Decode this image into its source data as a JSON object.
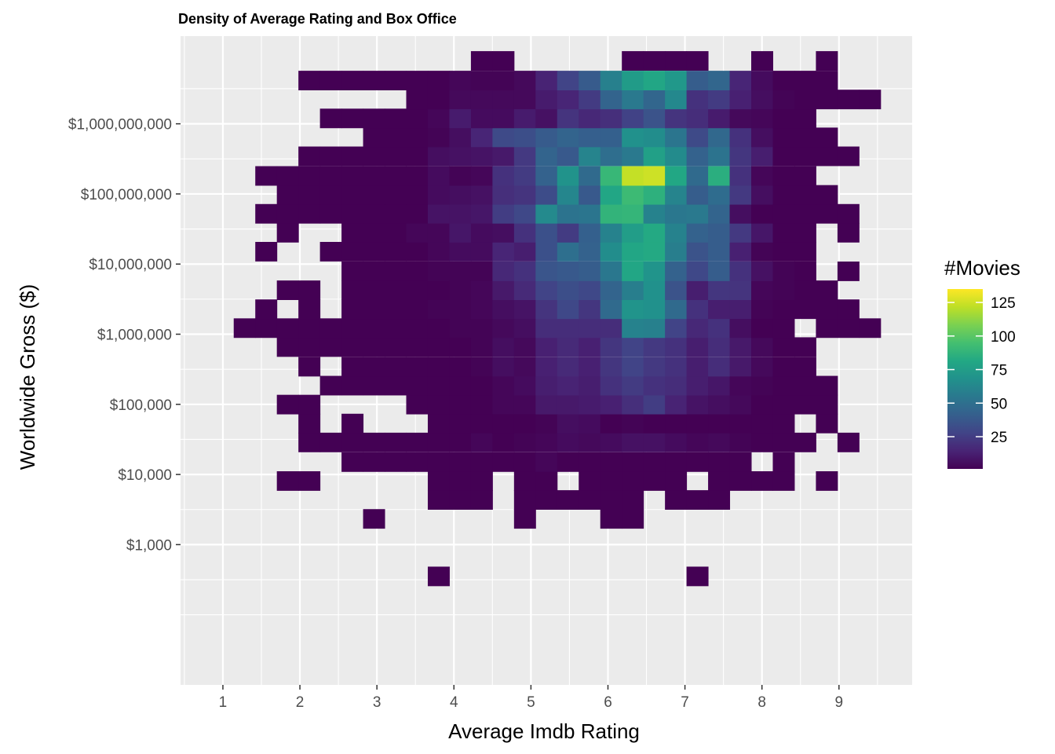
{
  "chart_data": {
    "type": "heatmap",
    "title": "Density of Average Rating and Box Office",
    "xlabel": "Average Imdb Rating",
    "ylabel": "Worldwide Gross ($)",
    "x_ticks": [
      1,
      2,
      3,
      4,
      5,
      6,
      7,
      8,
      9
    ],
    "x_tick_labels": [
      "1",
      "2",
      "3",
      "4",
      "5",
      "6",
      "7",
      "8",
      "9"
    ],
    "y_scale": "log10",
    "y_ticks": [
      1000,
      10000,
      100000,
      1000000,
      10000000,
      100000000,
      1000000000
    ],
    "y_tick_labels": [
      "$1,000",
      "$10,000",
      "$100,000",
      "$1,000,000",
      "$10,000,000",
      "$100,000,000",
      "$1,000,000,000"
    ],
    "xlim": [
      0.45,
      9.95
    ],
    "ylim_log10": [
      1.0,
      10.25
    ],
    "bin_width_x": 0.279,
    "bin_height_log10": 0.272,
    "x_bin_centers": [
      1.0,
      1.28,
      1.56,
      1.84,
      2.12,
      2.4,
      2.68,
      2.96,
      3.24,
      3.52,
      3.8,
      4.08,
      4.36,
      4.64,
      4.92,
      5.2,
      5.48,
      5.76,
      6.04,
      6.32,
      6.6,
      6.88,
      7.16,
      7.44,
      7.72,
      8.0,
      8.28,
      8.56,
      8.84,
      9.12,
      9.4
    ],
    "y_bin_centers_log10": [
      2.55,
      2.82,
      3.1,
      3.37,
      3.64,
      3.91,
      4.18,
      4.46,
      4.73,
      5.0,
      5.27,
      5.54,
      5.82,
      6.09,
      6.36,
      6.63,
      6.9,
      7.18,
      7.45,
      7.72,
      7.99,
      8.26,
      8.54,
      8.81,
      9.08,
      9.35,
      9.62,
      9.9
    ],
    "counts": [
      [
        0,
        0,
        0,
        0,
        0,
        0,
        0,
        0,
        0,
        0,
        1,
        0,
        0,
        0,
        0,
        0,
        0,
        0,
        0,
        0,
        0,
        0,
        1,
        0,
        0,
        0,
        0,
        0,
        0,
        0,
        0
      ],
      [
        0,
        0,
        0,
        0,
        0,
        0,
        0,
        0,
        0,
        0,
        0,
        0,
        0,
        0,
        0,
        0,
        0,
        0,
        0,
        0,
        0,
        0,
        0,
        0,
        0,
        0,
        0,
        0,
        0,
        0,
        0
      ],
      [
        0,
        0,
        0,
        0,
        0,
        0,
        0,
        0,
        0,
        0,
        0,
        0,
        0,
        0,
        0,
        0,
        0,
        0,
        0,
        0,
        0,
        0,
        0,
        0,
        0,
        0,
        0,
        0,
        0,
        0,
        0
      ],
      [
        0,
        0,
        0,
        0,
        0,
        0,
        0,
        1,
        0,
        0,
        0,
        0,
        0,
        0,
        1,
        0,
        0,
        0,
        1,
        1,
        0,
        0,
        0,
        0,
        0,
        0,
        0,
        0,
        0,
        0,
        0
      ],
      [
        0,
        0,
        0,
        0,
        0,
        0,
        0,
        0,
        0,
        0,
        1,
        1,
        1,
        0,
        1,
        1,
        1,
        1,
        1,
        1,
        0,
        1,
        1,
        1,
        0,
        0,
        0,
        0,
        0,
        0,
        0
      ],
      [
        0,
        0,
        0,
        1,
        1,
        0,
        0,
        0,
        0,
        0,
        1,
        1,
        1,
        0,
        1,
        1,
        0,
        1,
        1,
        1,
        1,
        1,
        0,
        1,
        1,
        1,
        1,
        0,
        1,
        0,
        0
      ],
      [
        0,
        0,
        0,
        0,
        0,
        0,
        1,
        1,
        1,
        1,
        1,
        1,
        1,
        1,
        1,
        3,
        1,
        1,
        1,
        1,
        1,
        1,
        1,
        1,
        1,
        0,
        1,
        0,
        0,
        0,
        0
      ],
      [
        0,
        0,
        0,
        0,
        1,
        1,
        1,
        1,
        1,
        1,
        1,
        1,
        3,
        1,
        2,
        3,
        5,
        4,
        5,
        7,
        7,
        5,
        3,
        4,
        2,
        1,
        1,
        1,
        0,
        1,
        0
      ],
      [
        0,
        0,
        0,
        0,
        1,
        0,
        1,
        0,
        0,
        0,
        1,
        1,
        1,
        1,
        1,
        2,
        6,
        5,
        1,
        2,
        1,
        1,
        1,
        1,
        1,
        1,
        1,
        0,
        1,
        0,
        0
      ],
      [
        0,
        0,
        0,
        1,
        1,
        0,
        0,
        0,
        0,
        1,
        1,
        1,
        1,
        3,
        3,
        10,
        10,
        11,
        13,
        19,
        25,
        14,
        8,
        6,
        4,
        1,
        1,
        1,
        1,
        0,
        0
      ],
      [
        0,
        0,
        0,
        0,
        0,
        1,
        1,
        1,
        1,
        1,
        1,
        1,
        1,
        3,
        5,
        12,
        14,
        12,
        20,
        24,
        20,
        18,
        12,
        9,
        3,
        2,
        1,
        1,
        1,
        0,
        0
      ],
      [
        0,
        0,
        0,
        0,
        1,
        0,
        1,
        1,
        1,
        1,
        1,
        1,
        2,
        6,
        4,
        13,
        17,
        13,
        22,
        28,
        23,
        20,
        12,
        18,
        10,
        4,
        1,
        1,
        0,
        0,
        0
      ],
      [
        0,
        0,
        0,
        1,
        1,
        1,
        1,
        1,
        1,
        1,
        1,
        1,
        2,
        6,
        4,
        13,
        17,
        13,
        22,
        28,
        23,
        20,
        12,
        18,
        10,
        4,
        1,
        1,
        0,
        0,
        0
      ],
      [
        0,
        1,
        1,
        1,
        1,
        1,
        1,
        1,
        1,
        1,
        1,
        2,
        2,
        4,
        6,
        18,
        18,
        18,
        18,
        60,
        59,
        28,
        16,
        20,
        6,
        1,
        1,
        0,
        1,
        1,
        1
      ],
      [
        0,
        0,
        1,
        0,
        1,
        0,
        1,
        1,
        1,
        1,
        2,
        2,
        3,
        6,
        8,
        21,
        30,
        22,
        47,
        70,
        68,
        47,
        20,
        12,
        12,
        2,
        1,
        1,
        1,
        1,
        0
      ],
      [
        0,
        0,
        0,
        1,
        1,
        0,
        1,
        1,
        1,
        1,
        1,
        2,
        3,
        10,
        17,
        28,
        33,
        30,
        44,
        58,
        68,
        35,
        12,
        22,
        21,
        3,
        2,
        1,
        1,
        0,
        0
      ],
      [
        0,
        0,
        0,
        0,
        0,
        0,
        1,
        1,
        1,
        1,
        2,
        2,
        2,
        16,
        20,
        36,
        38,
        40,
        54,
        80,
        70,
        43,
        30,
        40,
        20,
        7,
        2,
        1,
        0,
        1,
        0
      ],
      [
        0,
        0,
        1,
        0,
        0,
        1,
        1,
        1,
        1,
        1,
        3,
        5,
        5,
        15,
        12,
        34,
        50,
        43,
        66,
        80,
        82,
        58,
        35,
        40,
        13,
        2,
        1,
        1,
        0,
        0,
        0
      ],
      [
        0,
        0,
        0,
        1,
        0,
        0,
        1,
        1,
        1,
        3,
        3,
        9,
        5,
        6,
        20,
        34,
        24,
        42,
        60,
        75,
        82,
        60,
        43,
        40,
        23,
        9,
        1,
        1,
        0,
        1,
        0
      ],
      [
        0,
        0,
        1,
        1,
        1,
        1,
        1,
        1,
        1,
        1,
        8,
        8,
        9,
        25,
        30,
        64,
        52,
        53,
        88,
        89,
        60,
        54,
        55,
        44,
        6,
        1,
        1,
        1,
        1,
        1,
        0
      ],
      [
        0,
        0,
        0,
        1,
        1,
        1,
        1,
        1,
        1,
        1,
        5,
        6,
        7,
        19,
        21,
        32,
        62,
        38,
        80,
        92,
        86,
        61,
        40,
        48,
        23,
        6,
        1,
        1,
        1,
        0,
        0
      ],
      [
        0,
        0,
        1,
        1,
        1,
        1,
        1,
        1,
        1,
        1,
        5,
        2,
        3,
        20,
        24,
        43,
        69,
        47,
        90,
        123,
        125,
        81,
        47,
        85,
        20,
        3,
        1,
        1,
        0,
        0,
        0
      ],
      [
        0,
        0,
        0,
        0,
        1,
        1,
        1,
        1,
        1,
        1,
        6,
        7,
        8,
        10,
        23,
        44,
        38,
        61,
        49,
        55,
        77,
        65,
        43,
        52,
        22,
        12,
        1,
        1,
        1,
        1,
        0
      ],
      [
        0,
        0,
        0,
        0,
        0,
        0,
        0,
        1,
        1,
        1,
        2,
        6,
        15,
        31,
        33,
        39,
        44,
        41,
        42,
        68,
        66,
        53,
        31,
        46,
        20,
        6,
        1,
        1,
        1,
        0,
        0
      ],
      [
        0,
        0,
        0,
        0,
        0,
        1,
        1,
        1,
        1,
        1,
        3,
        11,
        5,
        5,
        11,
        7,
        21,
        16,
        19,
        27,
        35,
        21,
        18,
        11,
        4,
        3,
        1,
        1,
        0,
        0,
        0
      ],
      [
        0,
        0,
        0,
        0,
        0,
        0,
        0,
        0,
        0,
        1,
        1,
        4,
        4,
        4,
        4,
        11,
        15,
        24,
        44,
        55,
        45,
        63,
        20,
        24,
        13,
        6,
        2,
        1,
        1,
        1,
        1
      ],
      [
        0,
        0,
        0,
        0,
        1,
        1,
        1,
        1,
        1,
        1,
        1,
        3,
        2,
        2,
        4,
        14,
        28,
        39,
        59,
        74,
        80,
        72,
        40,
        45,
        15,
        5,
        1,
        1,
        1,
        0,
        0
      ],
      [
        0,
        0,
        0,
        0,
        0,
        0,
        0,
        0,
        0,
        0,
        0,
        0,
        1,
        1,
        0,
        0,
        0,
        0,
        0,
        1,
        1,
        1,
        1,
        0,
        0,
        1,
        0,
        0,
        1,
        0,
        0
      ]
    ],
    "legend": {
      "title": "#Movies",
      "min": 1,
      "max": 135,
      "ticks": [
        25,
        50,
        75,
        100,
        125
      ],
      "colorscale": "viridis"
    },
    "panel_background": "#EBEBEB",
    "grid": true
  }
}
